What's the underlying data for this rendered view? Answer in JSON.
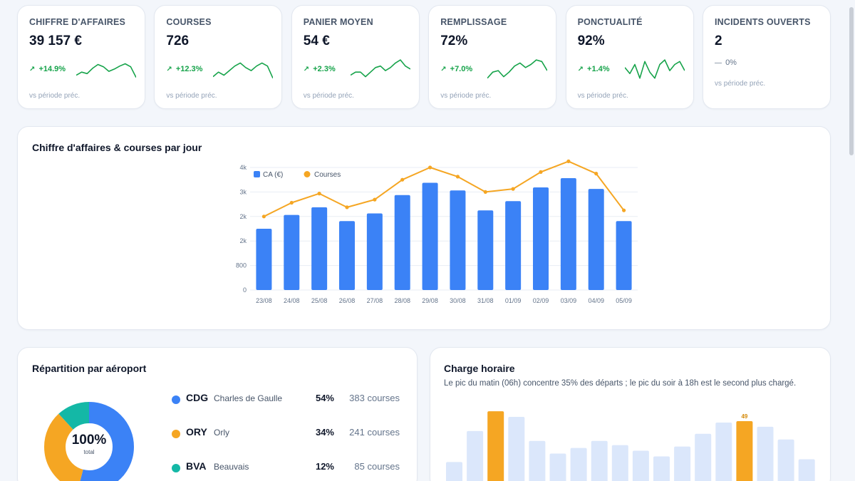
{
  "kpis": [
    {
      "title": "CHIFFRE D'AFFAIRES",
      "value": "39 157 €",
      "delta": "+14.9%",
      "sub": "vs période préc.",
      "trend": "up",
      "spark": [
        8,
        12,
        10,
        17,
        22,
        19,
        13,
        16,
        20,
        23,
        19,
        5
      ]
    },
    {
      "title": "COURSES",
      "value": "726",
      "delta": "+12.3%",
      "sub": "vs période préc.",
      "trend": "up",
      "spark": [
        6,
        12,
        8,
        14,
        20,
        24,
        18,
        14,
        20,
        24,
        20,
        4
      ]
    },
    {
      "title": "PANIER MOYEN",
      "value": "54 €",
      "delta": "+2.3%",
      "sub": "vs période préc.",
      "trend": "up",
      "spark": [
        8,
        12,
        12,
        6,
        12,
        18,
        20,
        14,
        18,
        24,
        28,
        20,
        16
      ]
    },
    {
      "title": "REMPLISSAGE",
      "value": "72%",
      "delta": "+7.0%",
      "sub": "vs période préc.",
      "trend": "up",
      "spark": [
        4,
        12,
        14,
        6,
        12,
        20,
        24,
        18,
        22,
        28,
        26,
        14
      ]
    },
    {
      "title": "PONCTUALITÉ",
      "value": "92%",
      "delta": "+1.4%",
      "sub": "vs période préc.",
      "trend": "up",
      "spark": [
        18,
        10,
        22,
        4,
        26,
        12,
        4,
        22,
        28,
        14,
        22,
        26,
        14
      ]
    },
    {
      "title": "INCIDENTS OUVERTS",
      "value": "2",
      "delta": "0%",
      "sub": "vs période préc.",
      "trend": "flat"
    }
  ],
  "main_chart": {
    "title": "Chiffre d'affaires & courses par jour",
    "chart_data": {
      "type": "bar",
      "categories": [
        "23/08",
        "24/08",
        "25/08",
        "26/08",
        "27/08",
        "28/08",
        "29/08",
        "30/08",
        "31/08",
        "01/09",
        "02/09",
        "03/09",
        "04/09",
        "05/09"
      ],
      "series": [
        {
          "name": "CA (€)",
          "type": "bar",
          "values": [
            2000,
            2450,
            2700,
            2250,
            2500,
            3100,
            3500,
            3250,
            2600,
            2900,
            3350,
            3650,
            3300,
            2250
          ]
        },
        {
          "name": "Courses",
          "type": "line",
          "values": [
            2400,
            2850,
            3150,
            2700,
            2950,
            3600,
            4000,
            3700,
            3200,
            3300,
            3850,
            4200,
            3800,
            2600
          ]
        }
      ],
      "yticks": [
        0,
        800,
        "2k",
        "2k",
        "3k",
        "4k"
      ],
      "ylim": [
        0,
        4000
      ],
      "legend": "top-left",
      "grid": true,
      "colors": {
        "bars": "#3b82f6",
        "line": "#f5a623"
      }
    }
  },
  "airports": {
    "title": "Répartition par aéroport",
    "center_value": "100%",
    "center_label": "total",
    "items": [
      {
        "code": "CDG",
        "name": "Charles de Gaulle",
        "pct": "54%",
        "count": "383 courses",
        "share": 54,
        "color": "#3b82f6"
      },
      {
        "code": "ORY",
        "name": "Orly",
        "pct": "34%",
        "count": "241 courses",
        "share": 34,
        "color": "#f5a623"
      },
      {
        "code": "BVA",
        "name": "Beauvais",
        "pct": "12%",
        "count": "85 courses",
        "share": 12,
        "color": "#14b8a6"
      }
    ]
  },
  "hourly": {
    "title": "Charge horaire",
    "subtitle": "Le pic du matin (06h) concentre 35% des départs ; le pic du soir à 18h est le second plus chargé.",
    "chart_data": {
      "type": "bar",
      "values": [
        20,
        42,
        56,
        52,
        35,
        26,
        30,
        35,
        32,
        28,
        24,
        31,
        40,
        48,
        49,
        45,
        36,
        22
      ],
      "peaks": [
        2,
        14
      ],
      "peak_label": "49",
      "colors": {
        "normal": "#dbe7fb",
        "peak": "#f5a623"
      }
    }
  }
}
